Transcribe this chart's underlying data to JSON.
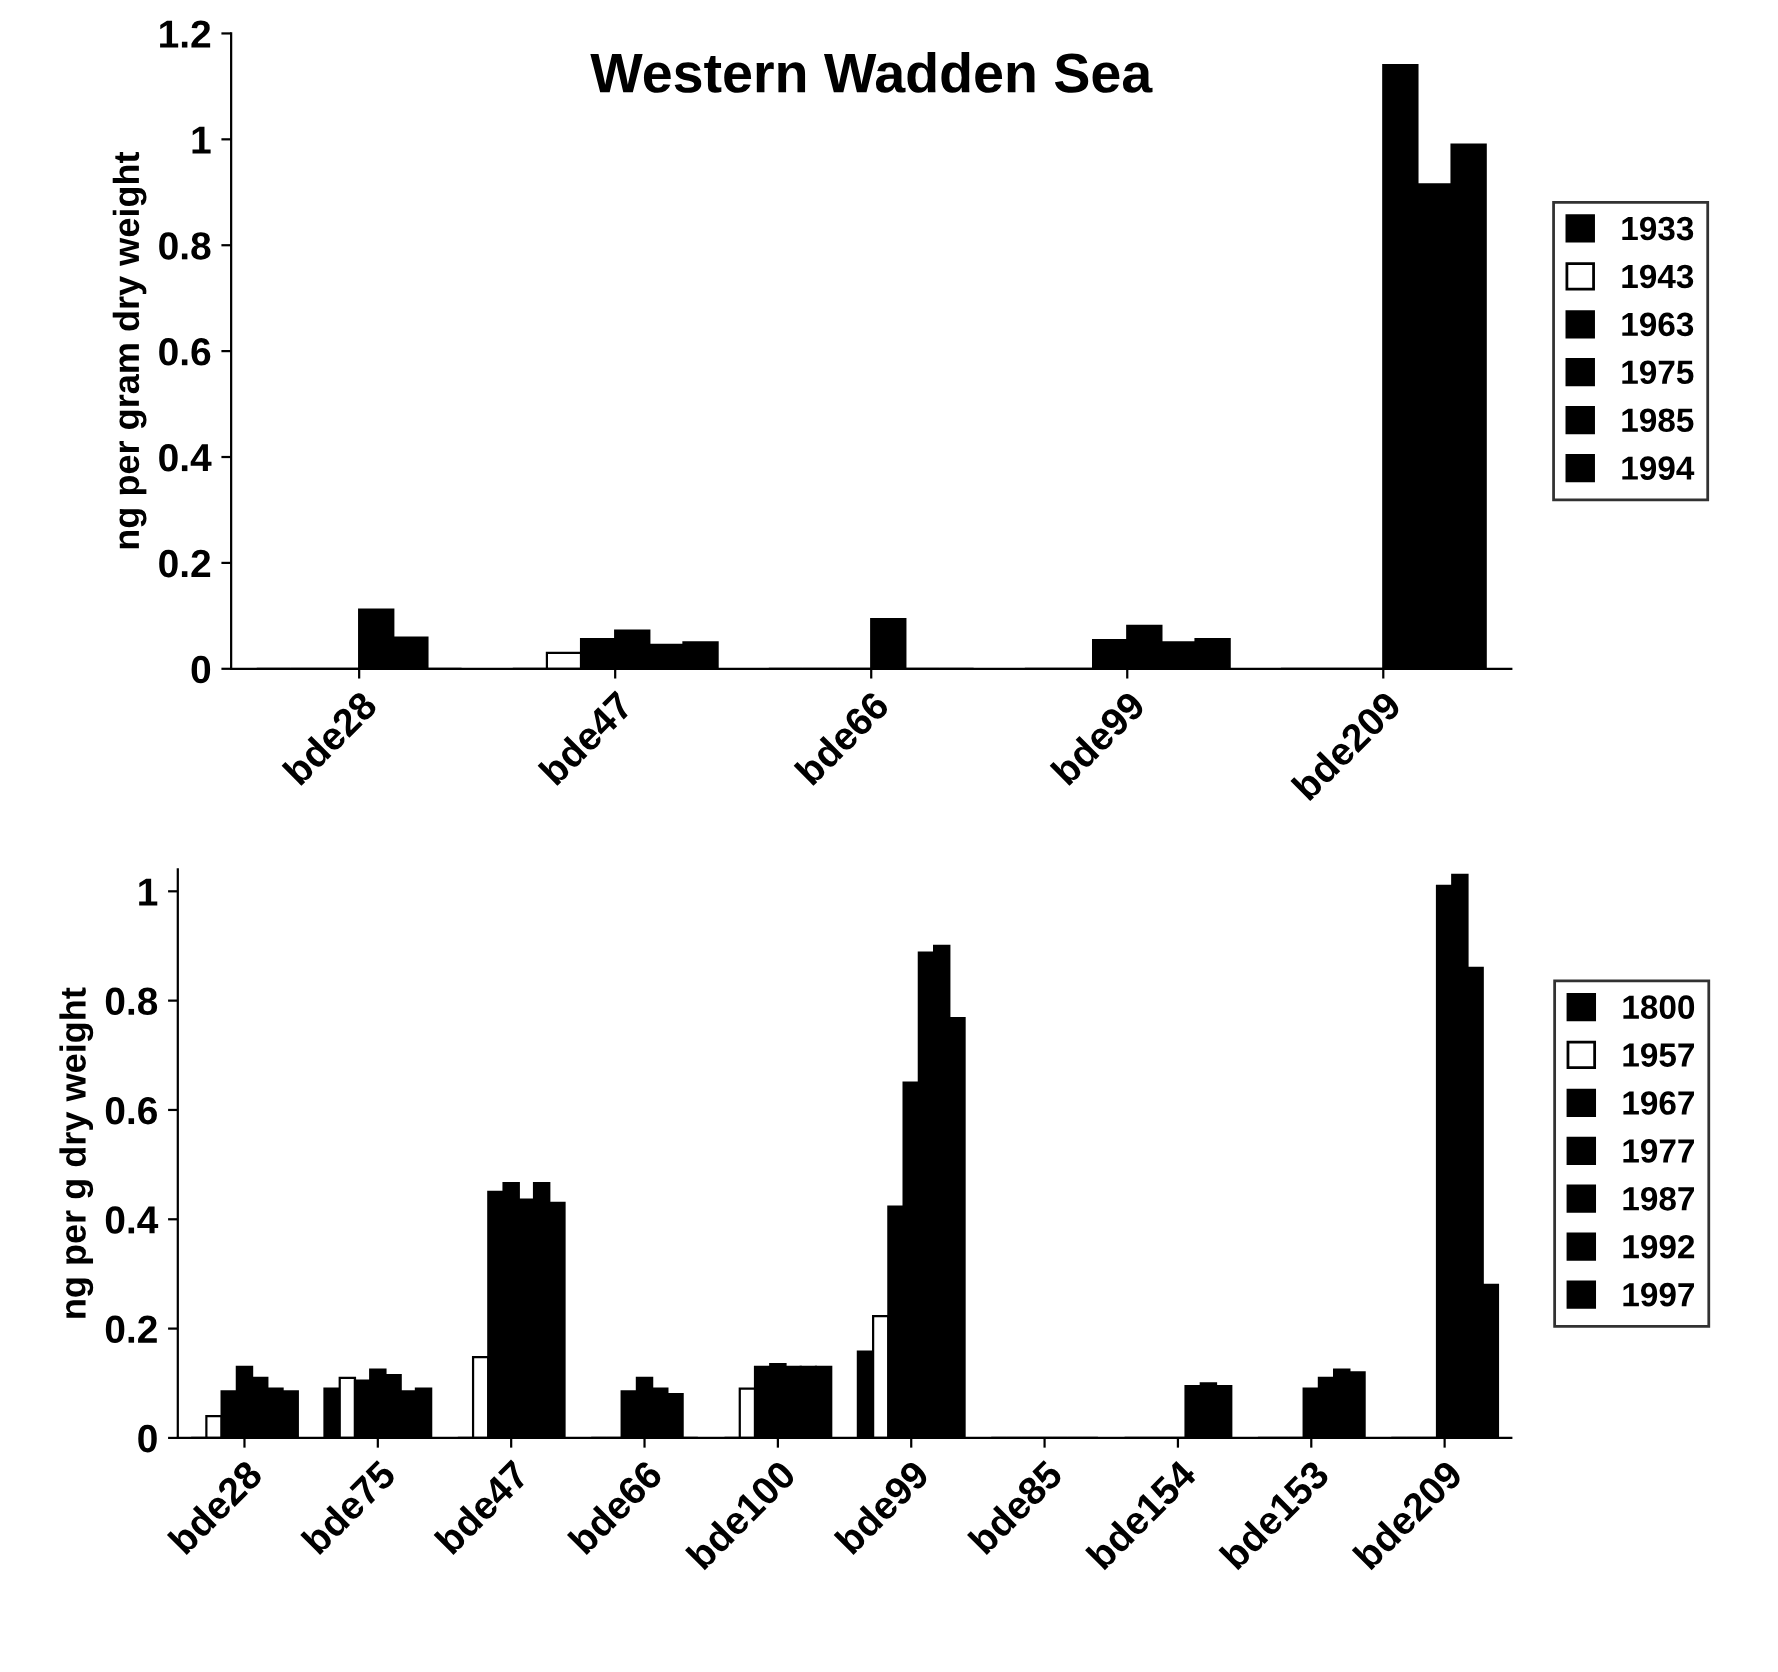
{
  "chart_data": [
    {
      "type": "bar",
      "title": "Western Wadden Sea",
      "ylabel": "ng per gram dry weight",
      "categories": [
        "bde28",
        "bde47",
        "bde66",
        "bde99",
        "bde209"
      ],
      "ylim": [
        0,
        1.2
      ],
      "yticks": [
        0,
        0.2,
        0.4,
        0.6,
        0.8,
        1,
        1.2
      ],
      "grid": false,
      "legend": "right",
      "series": [
        {
          "name": "1933",
          "color": "#000000",
          "values": [
            0,
            0,
            0,
            0,
            0
          ]
        },
        {
          "name": "1943",
          "color": "#ffffff",
          "values": [
            0,
            0.03,
            0,
            0,
            0
          ]
        },
        {
          "name": "1963",
          "color": "#000000",
          "values": [
            0,
            0.056,
            0,
            0.054,
            0
          ]
        },
        {
          "name": "1975",
          "color": "#000000",
          "values": [
            0.112,
            0.072,
            0.094,
            0.081,
            1.14
          ]
        },
        {
          "name": "1985",
          "color": "#000000",
          "values": [
            0.059,
            0.045,
            0,
            0.05,
            0.915
          ]
        },
        {
          "name": "1994",
          "color": "#000000",
          "values": [
            0,
            0.05,
            0,
            0.056,
            0.99
          ]
        }
      ]
    },
    {
      "type": "bar",
      "ylabel": "ng per g dry weight",
      "categories": [
        "bde28",
        "bde75",
        "bde47",
        "bde66",
        "bde100",
        "bde99",
        "bde85",
        "bde154",
        "bde153",
        "bde209"
      ],
      "ylim": [
        0,
        1.04
      ],
      "yticks": [
        0,
        0.2,
        0.4,
        0.6,
        0.8,
        1
      ],
      "grid": false,
      "legend": "right",
      "series": [
        {
          "name": "1800",
          "color": "#000000",
          "values": [
            0,
            0.09,
            0,
            0,
            0,
            0.158,
            0,
            0,
            0,
            0
          ]
        },
        {
          "name": "1957",
          "color": "#ffffff",
          "values": [
            0.04,
            0.11,
            0.148,
            0,
            0.09,
            0.223,
            0,
            0,
            0,
            0
          ]
        },
        {
          "name": "1967",
          "color": "#000000",
          "values": [
            0.085,
            0.105,
            0.45,
            0.085,
            0.13,
            0.423,
            0,
            0,
            0,
            0
          ]
        },
        {
          "name": "1977",
          "color": "#000000",
          "values": [
            0.13,
            0.125,
            0.466,
            0.11,
            0.135,
            0.65,
            0,
            0,
            0.09,
            1.01
          ]
        },
        {
          "name": "1987",
          "color": "#000000",
          "values": [
            0.11,
            0.115,
            0.436,
            0.09,
            0.13,
            0.888,
            0,
            0.095,
            0.11,
            1.03
          ]
        },
        {
          "name": "1992",
          "color": "#000000",
          "values": [
            0.09,
            0.085,
            0.466,
            0.08,
            0.13,
            0.9,
            0,
            0.1,
            0.125,
            0.86
          ]
        },
        {
          "name": "1997",
          "color": "#000000",
          "values": [
            0.085,
            0.09,
            0.43,
            0,
            0.13,
            0.768,
            0,
            0.095,
            0.12,
            0.28
          ]
        }
      ]
    }
  ]
}
